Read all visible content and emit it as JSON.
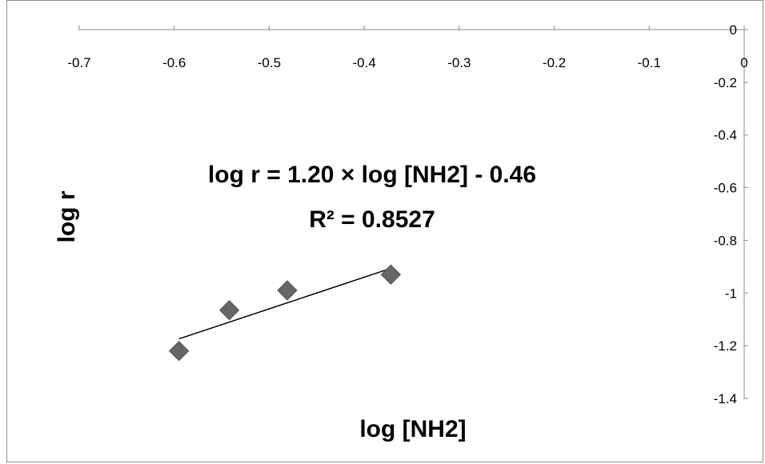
{
  "chart_data": {
    "type": "scatter",
    "title": "",
    "xlabel": "log [NH2]",
    "ylabel": "log r",
    "xlim": [
      -0.7,
      0
    ],
    "ylim": [
      -1.4,
      0
    ],
    "xticks": [
      -0.7,
      -0.6,
      -0.5,
      -0.4,
      -0.3,
      -0.2,
      -0.1,
      0
    ],
    "xtick_labels": [
      "-0.7",
      "-0.6",
      "-0.5",
      "-0.4",
      "-0.3",
      "-0.2",
      "-0.1",
      "0"
    ],
    "yticks": [
      0,
      -0.2,
      -0.4,
      -0.6,
      -0.8,
      -1,
      -1.2,
      -1.4
    ],
    "ytick_labels": [
      "0",
      "-0.2",
      "-0.4",
      "-0.6",
      "-0.8",
      "-1",
      "-1.2",
      "-1.4"
    ],
    "grid": false,
    "x_axis_position": "top",
    "y_axis_position": "right",
    "series": [
      {
        "marker": "diamond",
        "color": "#666666",
        "points": [
          {
            "x": -0.595,
            "y": -1.22
          },
          {
            "x": -0.542,
            "y": -1.065
          },
          {
            "x": -0.481,
            "y": -0.99
          },
          {
            "x": -0.372,
            "y": -0.93
          }
        ]
      }
    ],
    "trendline": {
      "type": "linear",
      "slope": 1.2,
      "intercept": -0.46,
      "x_range": [
        -0.595,
        -0.372
      ],
      "color": "#000000"
    },
    "annotations": {
      "equation": "log r = 1.20 × log [NH2] - 0.46",
      "r_squared": "R² = 0.8527"
    }
  }
}
